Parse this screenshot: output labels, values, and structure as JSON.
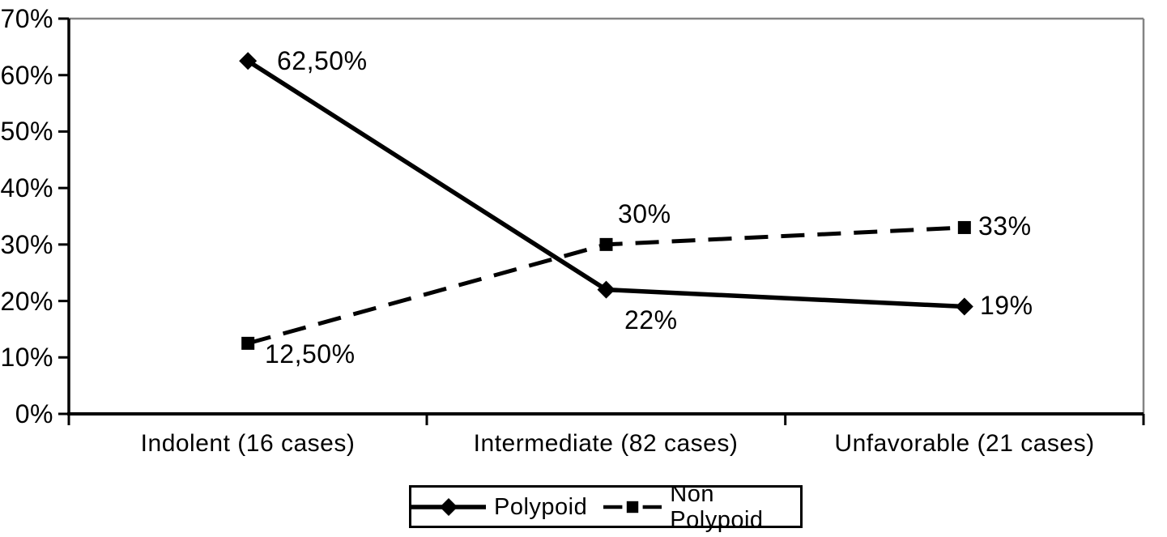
{
  "chart_data": {
    "type": "line",
    "title": "",
    "categories": [
      "Indolent (16 cases)",
      "Intermediate (82 cases)",
      "Unfavorable (21 cases)"
    ],
    "y_axis": {
      "min": 0,
      "max": 70,
      "step": 10,
      "unit": "%",
      "tick_labels": [
        "0%",
        "10%",
        "20%",
        "30%",
        "40%",
        "50%",
        "60%",
        "70%"
      ]
    },
    "series": [
      {
        "name": "Polypoid",
        "marker": "diamond",
        "line_style": "solid",
        "color": "#000000",
        "values": [
          62.5,
          22,
          19
        ],
        "point_labels": [
          "62,50%",
          "22%",
          "19%"
        ]
      },
      {
        "name": "Non Polypoid",
        "marker": "square",
        "line_style": "dashed",
        "color": "#000000",
        "values": [
          12.5,
          30,
          33
        ],
        "point_labels": [
          "12,50%",
          "30%",
          "33%"
        ]
      }
    ],
    "legend": {
      "position": "bottom",
      "entries": [
        "Polypoid",
        "Non Polypoid"
      ]
    },
    "grid": "off",
    "colors": {
      "background": "#ffffff",
      "frame_gray": "#848484",
      "axis_black": "#000000"
    }
  }
}
